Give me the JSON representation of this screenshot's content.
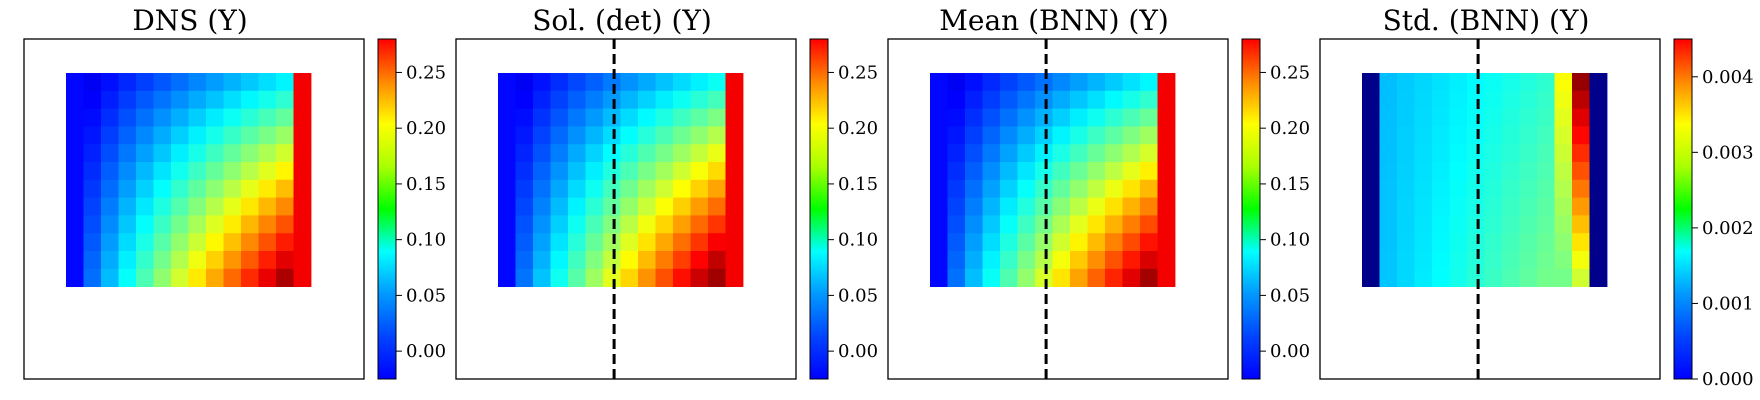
{
  "chart_data": [
    {
      "type": "heatmap",
      "title": "DNS (Y)",
      "grid_rows": 12,
      "grid_cols": 14,
      "colormap": "jet",
      "colorbar": {
        "range": [
          -0.025,
          0.28
        ],
        "ticks": [
          0.0,
          0.05,
          0.1,
          0.15,
          0.2,
          0.25
        ],
        "tick_labels": [
          "0.00",
          "0.05",
          "0.10",
          "0.15",
          "0.20",
          "0.25"
        ]
      },
      "dashed_line_x": null,
      "field": "dns"
    },
    {
      "type": "heatmap",
      "title": "Sol. (det) (Y)",
      "grid_rows": 12,
      "grid_cols": 14,
      "colormap": "jet",
      "colorbar": {
        "range": [
          -0.025,
          0.28
        ],
        "ticks": [
          0.0,
          0.05,
          0.1,
          0.15,
          0.2,
          0.25
        ],
        "tick_labels": [
          "0.00",
          "0.05",
          "0.10",
          "0.15",
          "0.20",
          "0.25"
        ]
      },
      "dashed_line_x": 0.465,
      "field": "det"
    },
    {
      "type": "heatmap",
      "title": "Mean (BNN) (Y)",
      "grid_rows": 12,
      "grid_cols": 14,
      "colormap": "jet",
      "colorbar": {
        "range": [
          -0.025,
          0.28
        ],
        "ticks": [
          0.0,
          0.05,
          0.1,
          0.15,
          0.2,
          0.25
        ],
        "tick_labels": [
          "0.00",
          "0.05",
          "0.10",
          "0.15",
          "0.20",
          "0.25"
        ]
      },
      "dashed_line_x": 0.465,
      "field": "mean"
    },
    {
      "type": "heatmap",
      "title": "Std. (BNN) (Y)",
      "grid_rows": 12,
      "grid_cols": 14,
      "colormap": "jet",
      "colorbar": {
        "range": [
          0.0,
          0.0045
        ],
        "ticks": [
          0.0,
          0.001,
          0.002,
          0.003,
          0.004
        ],
        "tick_labels": [
          "0.000",
          "0.001",
          "0.002",
          "0.003",
          "0.004"
        ]
      },
      "dashed_line_x": 0.465,
      "field": "std"
    }
  ]
}
